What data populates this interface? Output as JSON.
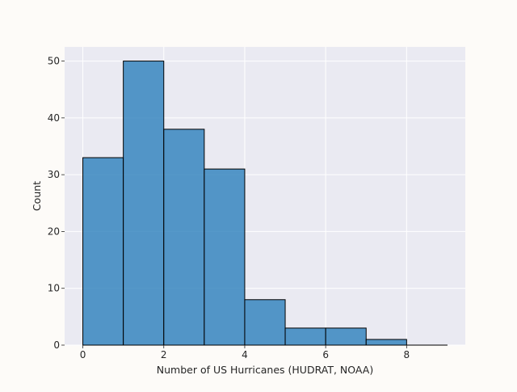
{
  "chart_data": {
    "type": "bar",
    "xlabel": "Number of US Hurricanes (HUDRAT, NOAA)",
    "ylabel": "Count",
    "bin_edges": [
      0,
      1,
      2,
      3,
      4,
      5,
      6,
      7,
      8,
      9
    ],
    "values": [
      33,
      50,
      38,
      31,
      8,
      3,
      3,
      1,
      0
    ],
    "xlim": [
      -0.45,
      9.45
    ],
    "ylim": [
      0,
      52.5
    ],
    "x_ticks": [
      0,
      2,
      4,
      6,
      8
    ],
    "y_ticks": [
      0,
      10,
      20,
      30,
      40,
      50
    ],
    "grid": true,
    "colors": {
      "bar_fill": "#3182bd",
      "bar_edge": "#000000",
      "plot_background": "#eaeaf2",
      "grid": "#ffffff",
      "page_background": "#fdfbf8"
    }
  }
}
